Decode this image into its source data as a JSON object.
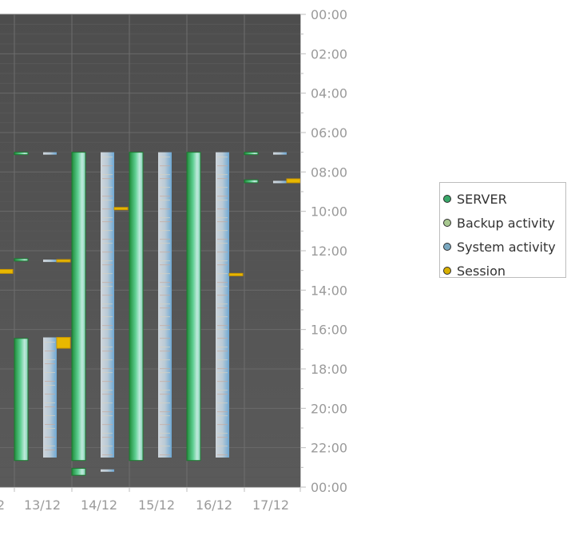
{
  "chart_data": {
    "type": "timeline",
    "y_ticks": [
      "00:00",
      "02:00",
      "04:00",
      "06:00",
      "08:00",
      "10:00",
      "12:00",
      "14:00",
      "16:00",
      "18:00",
      "20:00",
      "22:00",
      "00:00"
    ],
    "x_ticks": [
      "2",
      "13/12",
      "14/12",
      "15/12",
      "16/12",
      "17/12"
    ],
    "ylim_hours": [
      0,
      24
    ],
    "grid": true,
    "legend_position": "right",
    "legend": [
      {
        "name": "SERVER",
        "color": "#3aa86a"
      },
      {
        "name": "Backup activity",
        "color": "#a8c890"
      },
      {
        "name": "System activity",
        "color": "#7aa8c0"
      },
      {
        "name": "Session",
        "color": "#d8b000"
      }
    ],
    "series": {
      "server": [
        {
          "day": "12/12",
          "start": 7.0,
          "end": 7.05
        },
        {
          "day": "12/12",
          "start": 12.4,
          "end": 12.5
        },
        {
          "day": "12/12",
          "start": 16.45,
          "end": 22.65
        },
        {
          "day": "13/12",
          "start": 7.0,
          "end": 22.65
        },
        {
          "day": "13/12",
          "start": 23.05,
          "end": 23.4
        },
        {
          "day": "14/12",
          "start": 7.0,
          "end": 22.65
        },
        {
          "day": "15/12",
          "start": 7.0,
          "end": 22.65
        },
        {
          "day": "16/12",
          "start": 7.0,
          "end": 7.1
        },
        {
          "day": "16/12",
          "start": 8.4,
          "end": 8.55
        }
      ],
      "system": [
        {
          "day": "12/12",
          "start": 7.0,
          "end": 7.05
        },
        {
          "day": "12/12",
          "start": 12.45,
          "end": 12.5
        },
        {
          "day": "12/12",
          "start": 16.4,
          "end": 22.5
        },
        {
          "day": "13/12",
          "start": 7.0,
          "end": 22.5
        },
        {
          "day": "13/12",
          "start": 23.1,
          "end": 23.2
        },
        {
          "day": "14/12",
          "start": 7.0,
          "end": 22.5
        },
        {
          "day": "15/12",
          "start": 7.0,
          "end": 22.5
        },
        {
          "day": "16/12",
          "start": 7.0,
          "end": 7.12
        },
        {
          "day": "16/12",
          "start": 8.45,
          "end": 8.52
        }
      ],
      "session": [
        {
          "day": "11/12",
          "start": 12.95,
          "end": 13.15
        },
        {
          "day": "12/12",
          "start": 12.45,
          "end": 12.55
        },
        {
          "day": "12/12",
          "start": 16.4,
          "end": 16.95
        },
        {
          "day": "13/12",
          "start": 9.8,
          "end": 9.9
        },
        {
          "day": "15/12",
          "start": 13.15,
          "end": 13.22
        },
        {
          "day": "16/12",
          "start": 8.35,
          "end": 8.55
        }
      ]
    }
  }
}
